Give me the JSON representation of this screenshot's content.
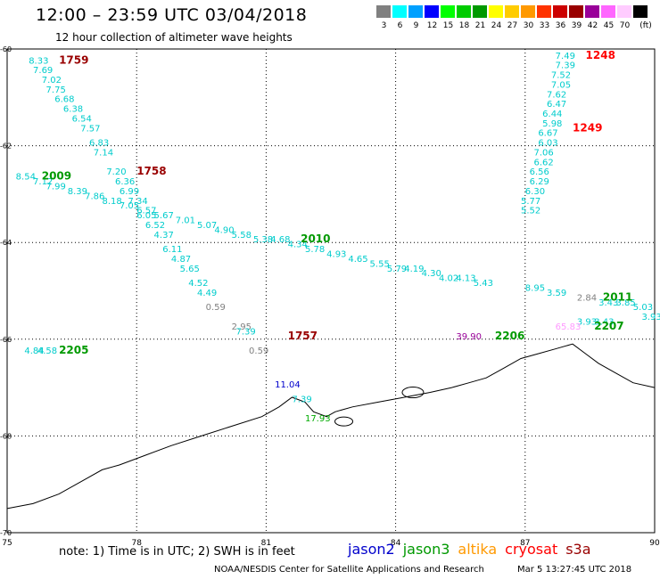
{
  "header": {
    "title": "12:00 – 23:59 UTC 03/04/2018",
    "subtitle": "12 hour collection of altimeter wave heights"
  },
  "legend": {
    "unit": "(ft)",
    "items": [
      {
        "label": "3",
        "color": "#808080"
      },
      {
        "label": "6",
        "color": "#00ffff"
      },
      {
        "label": "9",
        "color": "#00a0ff"
      },
      {
        "label": "12",
        "color": "#0000ff"
      },
      {
        "label": "15",
        "color": "#00ff00"
      },
      {
        "label": "18",
        "color": "#00cc00"
      },
      {
        "label": "21",
        "color": "#009900"
      },
      {
        "label": "24",
        "color": "#ffff00"
      },
      {
        "label": "27",
        "color": "#ffcc00"
      },
      {
        "label": "30",
        "color": "#ff9900"
      },
      {
        "label": "33",
        "color": "#ff3300"
      },
      {
        "label": "36",
        "color": "#cc0000"
      },
      {
        "label": "39",
        "color": "#990000"
      },
      {
        "label": "42",
        "color": "#990099"
      },
      {
        "label": "45",
        "color": "#ff66ff"
      },
      {
        "label": "70",
        "color": "#ffccff"
      },
      {
        "label": "",
        "color": "#000000"
      }
    ]
  },
  "axes": {
    "x_ticks": [
      "75",
      "78",
      "81",
      "84",
      "87",
      "90"
    ],
    "y_ticks": [
      "-60",
      "-62",
      "-64",
      "-66",
      "-68",
      "-70"
    ]
  },
  "pass_labels": [
    {
      "text": "1759",
      "lon": 76.2,
      "lat": -60.3,
      "color": "#990000"
    },
    {
      "text": "1758",
      "lon": 78.0,
      "lat": -62.6,
      "color": "#990000"
    },
    {
      "text": "2009",
      "lon": 75.8,
      "lat": -62.7,
      "color": "#009900"
    },
    {
      "text": "2010",
      "lon": 81.8,
      "lat": -64.0,
      "color": "#009900"
    },
    {
      "text": "1757",
      "lon": 81.5,
      "lat": -66.0,
      "color": "#990000"
    },
    {
      "text": "2205",
      "lon": 76.2,
      "lat": -66.3,
      "color": "#009900"
    },
    {
      "text": "2206",
      "lon": 86.3,
      "lat": -66.0,
      "color": "#009900"
    },
    {
      "text": "2207",
      "lon": 88.6,
      "lat": -65.8,
      "color": "#009900"
    },
    {
      "text": "2011",
      "lon": 88.8,
      "lat": -65.2,
      "color": "#009900"
    },
    {
      "text": "1248",
      "lon": 88.4,
      "lat": -60.2,
      "color": "#ff0000"
    },
    {
      "text": "1249",
      "lon": 88.1,
      "lat": -61.7,
      "color": "#ff0000"
    }
  ],
  "swh_values": [
    {
      "text": "8.33",
      "lon": 75.5,
      "lat": -60.3,
      "color": "#00cccc"
    },
    {
      "text": "7.69",
      "lon": 75.6,
      "lat": -60.5,
      "color": "#00cccc"
    },
    {
      "text": "7.02",
      "lon": 75.8,
      "lat": -60.7,
      "color": "#00cccc"
    },
    {
      "text": "7.75",
      "lon": 75.9,
      "lat": -60.9,
      "color": "#00cccc"
    },
    {
      "text": "6.68",
      "lon": 76.1,
      "lat": -61.1,
      "color": "#00cccc"
    },
    {
      "text": "6.38",
      "lon": 76.3,
      "lat": -61.3,
      "color": "#00cccc"
    },
    {
      "text": "6.54",
      "lon": 76.5,
      "lat": -61.5,
      "color": "#00cccc"
    },
    {
      "text": "7.57",
      "lon": 76.7,
      "lat": -61.7,
      "color": "#00cccc"
    },
    {
      "text": "6.83",
      "lon": 76.9,
      "lat": -62.0,
      "color": "#00cccc"
    },
    {
      "text": "7.14",
      "lon": 77.0,
      "lat": -62.2,
      "color": "#00cccc"
    },
    {
      "text": "7.20",
      "lon": 77.3,
      "lat": -62.6,
      "color": "#00cccc"
    },
    {
      "text": "6.36",
      "lon": 77.5,
      "lat": -62.8,
      "color": "#00cccc"
    },
    {
      "text": "6.99",
      "lon": 77.6,
      "lat": -63.0,
      "color": "#00cccc"
    },
    {
      "text": "7.34",
      "lon": 77.8,
      "lat": -63.2,
      "color": "#00cccc"
    },
    {
      "text": "6.57",
      "lon": 78.0,
      "lat": -63.4,
      "color": "#00cccc"
    },
    {
      "text": "6.52",
      "lon": 78.2,
      "lat": -63.7,
      "color": "#00cccc"
    },
    {
      "text": "4.37",
      "lon": 78.4,
      "lat": -63.9,
      "color": "#00cccc"
    },
    {
      "text": "6.11",
      "lon": 78.6,
      "lat": -64.2,
      "color": "#00cccc"
    },
    {
      "text": "4.87",
      "lon": 78.8,
      "lat": -64.4,
      "color": "#00cccc"
    },
    {
      "text": "5.65",
      "lon": 79.0,
      "lat": -64.6,
      "color": "#00cccc"
    },
    {
      "text": "4.52",
      "lon": 79.2,
      "lat": -64.9,
      "color": "#00cccc"
    },
    {
      "text": "4.49",
      "lon": 79.4,
      "lat": -65.1,
      "color": "#00cccc"
    },
    {
      "text": "0.59",
      "lon": 79.6,
      "lat": -65.4,
      "color": "#808080"
    },
    {
      "text": "2.95",
      "lon": 80.2,
      "lat": -65.8,
      "color": "#808080"
    },
    {
      "text": "7.39",
      "lon": 80.3,
      "lat": -65.9,
      "color": "#00cccc"
    },
    {
      "text": "0.59",
      "lon": 80.6,
      "lat": -66.3,
      "color": "#808080"
    },
    {
      "text": "8.54",
      "lon": 75.2,
      "lat": -62.7,
      "color": "#00cccc"
    },
    {
      "text": "7.12",
      "lon": 75.6,
      "lat": -62.8,
      "color": "#00cccc"
    },
    {
      "text": "7.99",
      "lon": 75.9,
      "lat": -62.9,
      "color": "#00cccc"
    },
    {
      "text": "8.39",
      "lon": 76.4,
      "lat": -63.0,
      "color": "#00cccc"
    },
    {
      "text": "7.86",
      "lon": 76.8,
      "lat": -63.1,
      "color": "#00cccc"
    },
    {
      "text": "8.18",
      "lon": 77.2,
      "lat": -63.2,
      "color": "#00cccc"
    },
    {
      "text": "7.05",
      "lon": 77.6,
      "lat": -63.3,
      "color": "#00cccc"
    },
    {
      "text": "6.05",
      "lon": 78.0,
      "lat": -63.5,
      "color": "#00cccc"
    },
    {
      "text": "5.67",
      "lon": 78.4,
      "lat": -63.5,
      "color": "#00cccc"
    },
    {
      "text": "7.01",
      "lon": 78.9,
      "lat": -63.6,
      "color": "#00cccc"
    },
    {
      "text": "5.07",
      "lon": 79.4,
      "lat": -63.7,
      "color": "#00cccc"
    },
    {
      "text": "4.90",
      "lon": 79.8,
      "lat": -63.8,
      "color": "#00cccc"
    },
    {
      "text": "5.58",
      "lon": 80.2,
      "lat": -63.9,
      "color": "#00cccc"
    },
    {
      "text": "5.38",
      "lon": 80.7,
      "lat": -64.0,
      "color": "#00cccc"
    },
    {
      "text": "4.68",
      "lon": 81.1,
      "lat": -64.0,
      "color": "#00cccc"
    },
    {
      "text": "4.34",
      "lon": 81.5,
      "lat": -64.1,
      "color": "#00cccc"
    },
    {
      "text": "5.78",
      "lon": 81.9,
      "lat": -64.2,
      "color": "#00cccc"
    },
    {
      "text": "4.93",
      "lon": 82.4,
      "lat": -64.3,
      "color": "#00cccc"
    },
    {
      "text": "4.65",
      "lon": 82.9,
      "lat": -64.4,
      "color": "#00cccc"
    },
    {
      "text": "5.55",
      "lon": 83.4,
      "lat": -64.5,
      "color": "#00cccc"
    },
    {
      "text": "5.79",
      "lon": 83.8,
      "lat": -64.6,
      "color": "#00cccc"
    },
    {
      "text": "4.19",
      "lon": 84.2,
      "lat": -64.6,
      "color": "#00cccc"
    },
    {
      "text": "4.30",
      "lon": 84.6,
      "lat": -64.7,
      "color": "#00cccc"
    },
    {
      "text": "4.02",
      "lon": 85.0,
      "lat": -64.8,
      "color": "#00cccc"
    },
    {
      "text": "4.13",
      "lon": 85.4,
      "lat": -64.8,
      "color": "#00cccc"
    },
    {
      "text": "5.43",
      "lon": 85.8,
      "lat": -64.9,
      "color": "#00cccc"
    },
    {
      "text": "8.95",
      "lon": 87.0,
      "lat": -65.0,
      "color": "#00cccc"
    },
    {
      "text": "3.59",
      "lon": 87.5,
      "lat": -65.1,
      "color": "#00cccc"
    },
    {
      "text": "2.84",
      "lon": 88.2,
      "lat": -65.2,
      "color": "#808080"
    },
    {
      "text": "3.43",
      "lon": 88.7,
      "lat": -65.3,
      "color": "#00cccc"
    },
    {
      "text": "3.85",
      "lon": 89.1,
      "lat": -65.3,
      "color": "#00cccc"
    },
    {
      "text": "5.03",
      "lon": 89.5,
      "lat": -65.4,
      "color": "#00cccc"
    },
    {
      "text": "3.93",
      "lon": 89.7,
      "lat": -65.6,
      "color": "#00cccc"
    },
    {
      "text": "3.93",
      "lon": 88.2,
      "lat": -65.7,
      "color": "#00cccc"
    },
    {
      "text": "3.43",
      "lon": 88.6,
      "lat": -65.7,
      "color": "#00cccc"
    },
    {
      "text": "65.83",
      "lon": 87.7,
      "lat": -65.8,
      "color": "#ff99ff"
    },
    {
      "text": "39.90",
      "lon": 85.4,
      "lat": -66.0,
      "color": "#990099"
    },
    {
      "text": "4.84",
      "lon": 75.4,
      "lat": -66.3,
      "color": "#00cccc"
    },
    {
      "text": "4.58",
      "lon": 75.7,
      "lat": -66.3,
      "color": "#00cccc"
    },
    {
      "text": "11.04",
      "lon": 81.2,
      "lat": -67.0,
      "color": "#0000cc"
    },
    {
      "text": "7.39",
      "lon": 81.6,
      "lat": -67.3,
      "color": "#00cccc"
    },
    {
      "text": "17.93",
      "lon": 81.9,
      "lat": -67.7,
      "color": "#00aa00"
    },
    {
      "text": "7.49",
      "lon": 87.7,
      "lat": -60.2,
      "color": "#00cccc"
    },
    {
      "text": "7.39",
      "lon": 87.7,
      "lat": -60.4,
      "color": "#00cccc"
    },
    {
      "text": "7.52",
      "lon": 87.6,
      "lat": -60.6,
      "color": "#00cccc"
    },
    {
      "text": "7.05",
      "lon": 87.6,
      "lat": -60.8,
      "color": "#00cccc"
    },
    {
      "text": "7.62",
      "lon": 87.5,
      "lat": -61.0,
      "color": "#00cccc"
    },
    {
      "text": "6.47",
      "lon": 87.5,
      "lat": -61.2,
      "color": "#00cccc"
    },
    {
      "text": "6.44",
      "lon": 87.4,
      "lat": -61.4,
      "color": "#00cccc"
    },
    {
      "text": "5.98",
      "lon": 87.4,
      "lat": -61.6,
      "color": "#00cccc"
    },
    {
      "text": "6.67",
      "lon": 87.3,
      "lat": -61.8,
      "color": "#00cccc"
    },
    {
      "text": "6.03",
      "lon": 87.3,
      "lat": -62.0,
      "color": "#00cccc"
    },
    {
      "text": "7.06",
      "lon": 87.2,
      "lat": -62.2,
      "color": "#00cccc"
    },
    {
      "text": "6.62",
      "lon": 87.2,
      "lat": -62.4,
      "color": "#00cccc"
    },
    {
      "text": "6.56",
      "lon": 87.1,
      "lat": -62.6,
      "color": "#00cccc"
    },
    {
      "text": "6.29",
      "lon": 87.1,
      "lat": -62.8,
      "color": "#00cccc"
    },
    {
      "text": "6.30",
      "lon": 87.0,
      "lat": -63.0,
      "color": "#00cccc"
    },
    {
      "text": "5.77",
      "lon": 86.9,
      "lat": -63.2,
      "color": "#00cccc"
    },
    {
      "text": "5.52",
      "lon": 86.9,
      "lat": -63.4,
      "color": "#00cccc"
    }
  ],
  "coastline": [
    [
      75.0,
      -69.5
    ],
    [
      75.6,
      -69.4
    ],
    [
      76.2,
      -69.2
    ],
    [
      76.8,
      -68.9
    ],
    [
      77.2,
      -68.7
    ],
    [
      77.6,
      -68.6
    ],
    [
      78.2,
      -68.4
    ],
    [
      78.8,
      -68.2
    ],
    [
      79.5,
      -68.0
    ],
    [
      80.2,
      -67.8
    ],
    [
      80.9,
      -67.6
    ],
    [
      81.3,
      -67.4
    ],
    [
      81.6,
      -67.2
    ],
    [
      81.9,
      -67.3
    ],
    [
      82.1,
      -67.5
    ],
    [
      82.4,
      -67.6
    ],
    [
      82.6,
      -67.5
    ],
    [
      83.0,
      -67.4
    ],
    [
      83.6,
      -67.3
    ],
    [
      84.2,
      -67.2
    ],
    [
      84.8,
      -67.1
    ],
    [
      85.3,
      -67.0
    ],
    [
      85.7,
      -66.9
    ],
    [
      86.1,
      -66.8
    ],
    [
      86.5,
      -66.6
    ],
    [
      86.9,
      -66.4
    ],
    [
      87.3,
      -66.3
    ],
    [
      87.7,
      -66.2
    ],
    [
      88.1,
      -66.1
    ],
    [
      88.4,
      -66.3
    ],
    [
      88.7,
      -66.5
    ],
    [
      89.1,
      -66.7
    ],
    [
      89.5,
      -66.9
    ],
    [
      90.0,
      -67.0
    ]
  ],
  "footer": {
    "note": "note: 1) Time is in UTC; 2) SWH is in feet",
    "credit": "NOAA/NESDIS Center for Satellite Applications and Research",
    "generated": "Mar  5 13:27:45 UTC 2018"
  },
  "satellites": [
    {
      "name": "jason2",
      "color": "#0000cc"
    },
    {
      "name": "jason3",
      "color": "#009900"
    },
    {
      "name": "altika",
      "color": "#ff9900"
    },
    {
      "name": "cryosat",
      "color": "#ff0000"
    },
    {
      "name": "s3a",
      "color": "#990000"
    }
  ]
}
